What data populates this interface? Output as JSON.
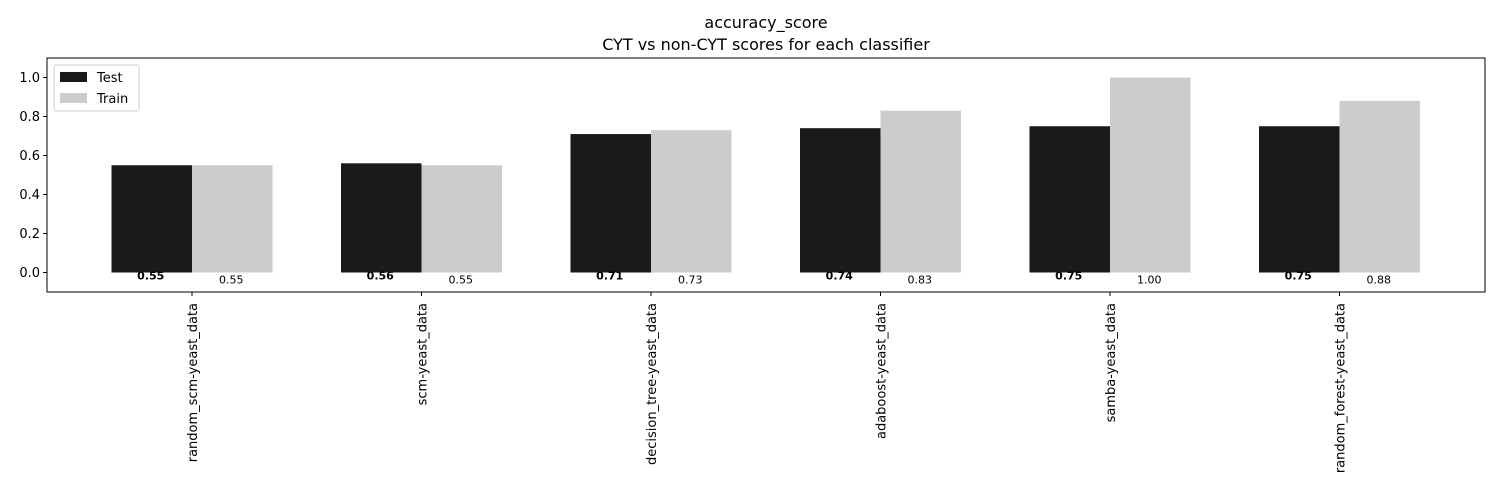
{
  "chart_data": {
    "type": "bar",
    "title": "accuracy_score",
    "subtitle": "CYT vs non-CYT scores for each classifier",
    "xlabel": "",
    "ylabel": "",
    "ylim": [
      -0.1,
      1.1
    ],
    "yticks": [
      "0.0",
      "0.2",
      "0.4",
      "0.6",
      "0.8",
      "1.0"
    ],
    "legend_position": "top-left",
    "grid": false,
    "categories": [
      "random_scm-yeast_data",
      "scm-yeast_data",
      "decision_tree-yeast_data",
      "adaboost-yeast_data",
      "samba-yeast_data",
      "random_forest-yeast_data"
    ],
    "series": [
      {
        "name": "Test",
        "color": "#1a1a1a",
        "values": [
          0.55,
          0.56,
          0.71,
          0.74,
          0.75,
          0.75
        ],
        "labels": [
          "0.55",
          "0.56",
          "0.71",
          "0.74",
          "0.75",
          "0.75"
        ]
      },
      {
        "name": "Train",
        "color": "#cccccc",
        "values": [
          0.55,
          0.55,
          0.73,
          0.83,
          1.0,
          0.88
        ],
        "labels": [
          "0.55",
          "0.55",
          "0.73",
          "0.83",
          "1.00",
          "0.88"
        ]
      }
    ]
  }
}
